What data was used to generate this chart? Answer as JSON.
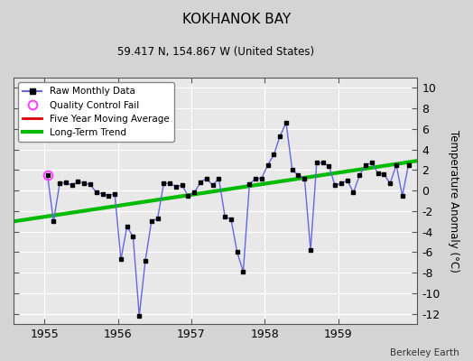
{
  "title": "KOKHANOK BAY",
  "subtitle": "59.417 N, 154.867 W (United States)",
  "ylabel": "Temperature Anomaly (°C)",
  "credit": "Berkeley Earth",
  "ylim": [
    -13,
    11
  ],
  "yticks": [
    -12,
    -10,
    -8,
    -6,
    -4,
    -2,
    0,
    2,
    4,
    6,
    8,
    10
  ],
  "xlim": [
    1954.58,
    1960.08
  ],
  "xticks": [
    1955,
    1956,
    1957,
    1958,
    1959
  ],
  "fig_bg_color": "#d4d4d4",
  "plot_bg_color": "#e8e8e8",
  "raw_line_color": "#6666dd",
  "marker_color": "#000000",
  "qc_color": "#ff44ff",
  "ma_color": "#dd0000",
  "trend_color": "#00bb00",
  "trend_linewidth": 3.0,
  "raw_linewidth": 1.0,
  "raw_monthly_x": [
    1955.042,
    1955.125,
    1955.208,
    1955.292,
    1955.375,
    1955.458,
    1955.542,
    1955.625,
    1955.708,
    1955.792,
    1955.875,
    1955.958,
    1956.042,
    1956.125,
    1956.208,
    1956.292,
    1956.375,
    1956.458,
    1956.542,
    1956.625,
    1956.708,
    1956.792,
    1956.875,
    1956.958,
    1957.042,
    1957.125,
    1957.208,
    1957.292,
    1957.375,
    1957.458,
    1957.542,
    1957.625,
    1957.708,
    1957.792,
    1957.875,
    1957.958,
    1958.042,
    1958.125,
    1958.208,
    1958.292,
    1958.375,
    1958.458,
    1958.542,
    1958.625,
    1958.708,
    1958.792,
    1958.875,
    1958.958,
    1959.042,
    1959.125,
    1959.208,
    1959.292,
    1959.375,
    1959.458,
    1959.542,
    1959.625,
    1959.708,
    1959.792,
    1959.875,
    1959.958
  ],
  "raw_monthly_y": [
    1.5,
    -3.0,
    0.7,
    0.8,
    0.5,
    0.9,
    0.7,
    0.6,
    -0.2,
    -0.3,
    -0.5,
    -0.3,
    -6.7,
    -3.5,
    -4.5,
    -12.2,
    -6.8,
    -3.0,
    -2.7,
    0.7,
    0.7,
    0.4,
    0.5,
    -0.5,
    -0.2,
    0.8,
    1.2,
    0.5,
    1.2,
    -2.5,
    -2.8,
    -6.0,
    -7.9,
    0.6,
    1.2,
    1.2,
    2.5,
    3.5,
    5.3,
    6.6,
    2.0,
    1.5,
    1.2,
    -5.8,
    2.7,
    2.7,
    2.4,
    0.5,
    0.7,
    1.0,
    -0.2,
    1.5,
    2.5,
    2.7,
    1.7,
    1.6,
    0.7,
    2.5,
    -0.5,
    2.5
  ],
  "qc_fail_x": [
    1955.042
  ],
  "qc_fail_y": [
    1.5
  ],
  "trend_x": [
    1954.58,
    1960.08
  ],
  "trend_y": [
    -3.0,
    2.9
  ],
  "grid_color": "#ffffff",
  "legend_loc": "upper left"
}
